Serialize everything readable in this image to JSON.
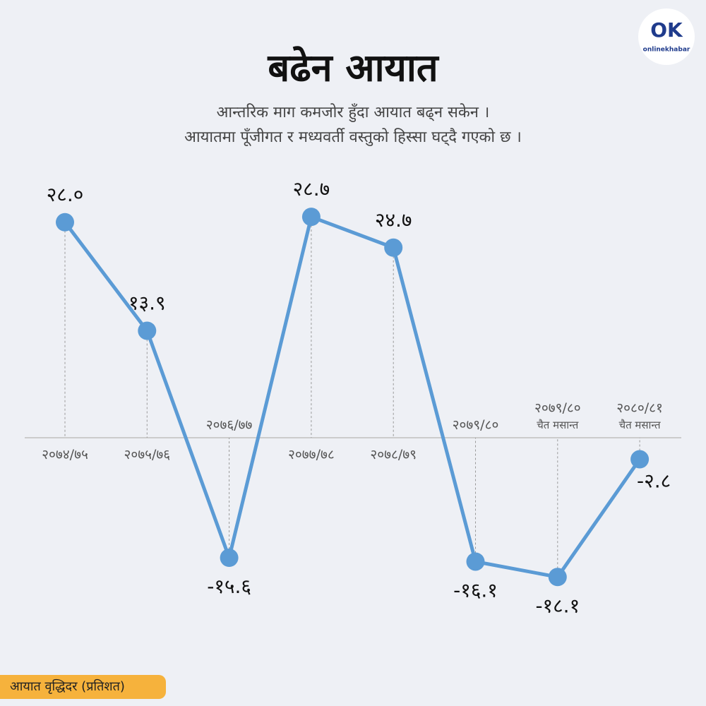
{
  "chart_data": {
    "type": "line",
    "title": "बढेन आयात",
    "subtitle": [
      "आन्तरिक माग कमजोर हुँदा आयात बढ्न सकेन ।",
      "आयातमा पूँजीगत र मध्यवर्ती वस्तुको हिस्सा घट्दै गएको छ ।"
    ],
    "categories": [
      "२०७४/७५",
      "२०७५/७६",
      "२०७६/७७",
      "२०७७/७८",
      "२०७८/७९",
      "२०७९/८०",
      "२०७९/८०\nचैत मसान्त",
      "२०८०/८१\nचैत मसान्त"
    ],
    "series": [
      {
        "name": "आयात वृद्धिदर (प्रतिशत)",
        "color": "#5b9bd5",
        "values": [
          28.0,
          13.9,
          -15.6,
          28.7,
          24.7,
          -16.1,
          -18.1,
          -2.8
        ],
        "value_labels": [
          "२८.०",
          "१३.९",
          "-१५.६",
          "२८.७",
          "२४.७",
          "-१६.१",
          "-१८.१",
          "-२.८"
        ]
      }
    ],
    "ylim": [
      -20,
      30
    ],
    "logo": {
      "mark": "OK",
      "name": "onlinekhabar"
    }
  }
}
